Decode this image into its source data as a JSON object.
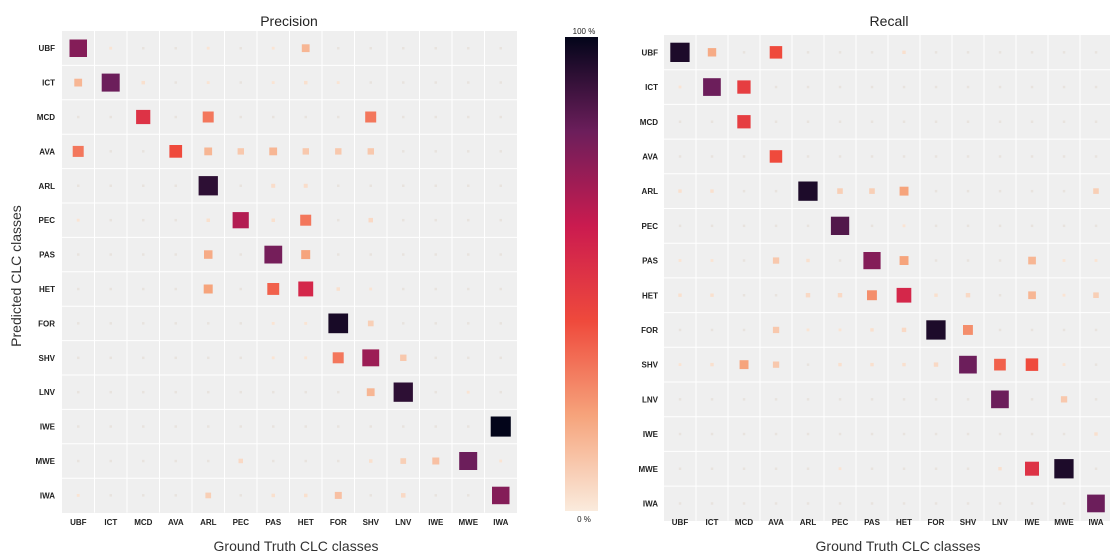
{
  "figure": {
    "y_axis_label": "Predicted CLC classes",
    "colorbar": {
      "max_label": "100 %",
      "min_label": "0 %",
      "colors": [
        "#faebdd",
        "#f6a47c",
        "#ef4a3c",
        "#cb1b4f",
        "#6c1e5b",
        "#03051a"
      ]
    },
    "grid_background": "#efefef"
  },
  "chart_data": [
    {
      "type": "heatmap",
      "title": "Precision",
      "xlabel": "Ground Truth CLC classes",
      "ylabel": "Predicted CLC classes",
      "classes": [
        "UBF",
        "ICT",
        "MCD",
        "AVA",
        "ARL",
        "PEC",
        "PAS",
        "HET",
        "FOR",
        "SHV",
        "LNV",
        "IWE",
        "MWE",
        "IWA"
      ],
      "value_range": [
        0,
        100
      ],
      "values": [
        [
          75,
          2,
          1,
          1,
          2,
          1,
          2,
          15,
          1,
          1,
          1,
          1,
          1,
          1
        ],
        [
          15,
          80,
          3,
          1,
          2,
          1,
          2,
          3,
          2,
          1,
          1,
          1,
          1,
          1
        ],
        [
          1,
          1,
          50,
          1,
          30,
          1,
          1,
          1,
          1,
          30,
          1,
          1,
          1,
          1
        ],
        [
          30,
          1,
          1,
          40,
          15,
          10,
          15,
          10,
          10,
          10,
          1,
          1,
          1,
          1
        ],
        [
          1,
          1,
          1,
          1,
          92,
          1,
          4,
          4,
          1,
          1,
          1,
          1,
          1,
          1
        ],
        [
          2,
          1,
          1,
          1,
          3,
          65,
          3,
          30,
          1,
          5,
          1,
          1,
          1,
          1
        ],
        [
          1,
          1,
          1,
          1,
          18,
          1,
          78,
          20,
          1,
          1,
          1,
          1,
          1,
          1
        ],
        [
          1,
          1,
          1,
          1,
          20,
          1,
          35,
          55,
          3,
          2,
          1,
          1,
          1,
          1
        ],
        [
          1,
          1,
          1,
          1,
          1,
          1,
          2,
          2,
          96,
          8,
          1,
          1,
          1,
          1
        ],
        [
          1,
          1,
          1,
          1,
          1,
          1,
          2,
          2,
          30,
          70,
          10,
          1,
          1,
          1
        ],
        [
          1,
          1,
          1,
          1,
          1,
          1,
          1,
          1,
          1,
          15,
          92,
          1,
          2,
          1
        ],
        [
          1,
          1,
          1,
          1,
          1,
          1,
          1,
          1,
          1,
          1,
          1,
          1,
          1,
          100
        ],
        [
          1,
          1,
          1,
          1,
          1,
          5,
          1,
          1,
          1,
          3,
          8,
          12,
          80,
          2
        ],
        [
          2,
          1,
          1,
          1,
          8,
          1,
          3,
          3,
          12,
          1,
          5,
          1,
          1,
          75
        ]
      ]
    },
    {
      "type": "heatmap",
      "title": "Recall",
      "xlabel": "Ground Truth CLC classes",
      "ylabel": "",
      "classes": [
        "UBF",
        "ICT",
        "MCD",
        "AVA",
        "ARL",
        "PEC",
        "PAS",
        "HET",
        "FOR",
        "SHV",
        "LNV",
        "IWE",
        "MWE",
        "IWA"
      ],
      "value_range": [
        0,
        100
      ],
      "values": [
        [
          95,
          18,
          1,
          40,
          1,
          1,
          1,
          3,
          1,
          1,
          1,
          1,
          1,
          1
        ],
        [
          2,
          80,
          45,
          1,
          1,
          1,
          1,
          1,
          1,
          1,
          1,
          1,
          1,
          1
        ],
        [
          1,
          1,
          45,
          1,
          1,
          1,
          1,
          1,
          1,
          1,
          1,
          1,
          1,
          1
        ],
        [
          1,
          1,
          1,
          40,
          1,
          1,
          1,
          1,
          1,
          1,
          1,
          1,
          1,
          1
        ],
        [
          3,
          3,
          1,
          1,
          95,
          8,
          8,
          20,
          1,
          1,
          1,
          1,
          1,
          8
        ],
        [
          1,
          1,
          1,
          1,
          1,
          85,
          1,
          2,
          1,
          1,
          1,
          1,
          1,
          1
        ],
        [
          2,
          2,
          1,
          10,
          3,
          1,
          75,
          20,
          1,
          1,
          1,
          15,
          2,
          2
        ],
        [
          3,
          3,
          1,
          1,
          5,
          5,
          25,
          55,
          3,
          5,
          1,
          15,
          2,
          8
        ],
        [
          1,
          1,
          1,
          10,
          2,
          2,
          3,
          5,
          95,
          25,
          1,
          1,
          1,
          1
        ],
        [
          2,
          3,
          20,
          10,
          1,
          3,
          3,
          3,
          5,
          80,
          35,
          40,
          2,
          1
        ],
        [
          1,
          1,
          1,
          1,
          1,
          1,
          1,
          1,
          1,
          1,
          80,
          1,
          10,
          1
        ],
        [
          1,
          1,
          1,
          1,
          1,
          1,
          1,
          1,
          1,
          1,
          1,
          1,
          1,
          3
        ],
        [
          1,
          1,
          1,
          1,
          1,
          2,
          1,
          1,
          1,
          1,
          3,
          50,
          95,
          1
        ],
        [
          1,
          1,
          1,
          1,
          1,
          1,
          1,
          1,
          1,
          1,
          1,
          1,
          1,
          80
        ]
      ]
    }
  ]
}
